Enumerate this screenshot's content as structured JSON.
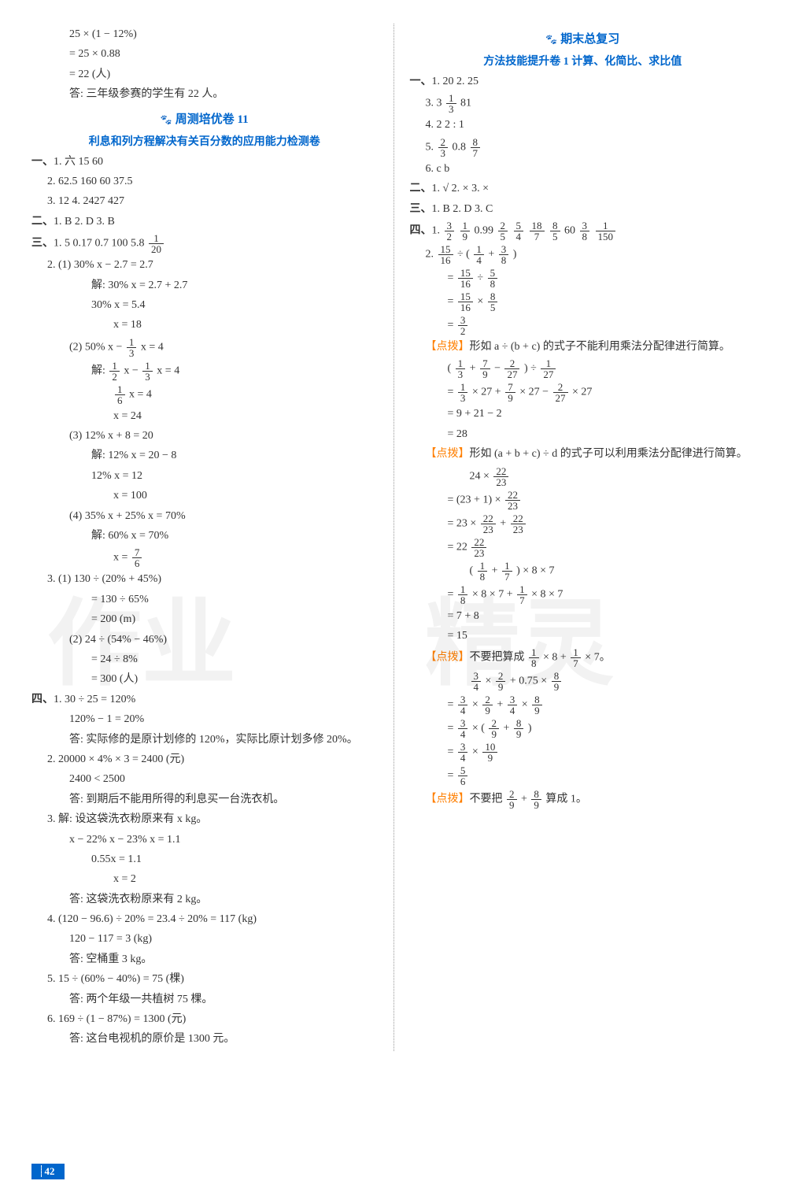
{
  "watermarks": {
    "left": "作业",
    "right": "精灵"
  },
  "pageNumber": "42",
  "left": {
    "intro": [
      "25 × (1 − 12%)",
      "= 25 × 0.88",
      "= 22 (人)",
      "答: 三年级参赛的学生有 22 人。"
    ],
    "heading11": "周测培优卷 11",
    "subheading11": "利息和列方程解决有关百分数的应用能力检测卷",
    "sec1_label": "一、",
    "sec1": [
      "1. 六  15  60",
      "2. 62.5  160  60  37.5",
      "3. 12  4. 2427  427"
    ],
    "sec2_label": "二、",
    "sec2": "1. B  2. D  3. B",
    "sec3_label": "三、",
    "sec3_q1": "1. 5  0.17  0.7  100  5.8  ",
    "sec3_q1_frac_n": "1",
    "sec3_q1_frac_d": "20",
    "sec3_q2_header": "2. (1) 30% x − 2.7 = 2.7",
    "sec3_q2_1a": "解: 30% x = 2.7 + 2.7",
    "sec3_q2_1b": "30% x = 5.4",
    "sec3_q2_1c": "x = 18",
    "sec3_q2_2h": "(2) 50% x − ",
    "sec3_q2_2h_f1n": "1",
    "sec3_q2_2h_f1d": "3",
    "sec3_q2_2h_tail": " x = 4",
    "sec3_q2_2a_pre": "解: ",
    "sec3_q2_2a_f1n": "1",
    "sec3_q2_2a_f1d": "2",
    "sec3_q2_2a_mid": " x − ",
    "sec3_q2_2a_f2n": "1",
    "sec3_q2_2a_f2d": "3",
    "sec3_q2_2a_tail": " x = 4",
    "sec3_q2_2b_fn": "1",
    "sec3_q2_2b_fd": "6",
    "sec3_q2_2b_tail": " x = 4",
    "sec3_q2_2c": "x = 24",
    "sec3_q2_3h": "(3) 12% x + 8 = 20",
    "sec3_q2_3a": "解: 12% x = 20 − 8",
    "sec3_q2_3b": "12% x = 12",
    "sec3_q2_3c": "x = 100",
    "sec3_q2_4h": "(4) 35% x + 25% x = 70%",
    "sec3_q2_4a": "解: 60% x = 70%",
    "sec3_q2_4b_pre": "x = ",
    "sec3_q2_4b_fn": "7",
    "sec3_q2_4b_fd": "6",
    "sec3_q3_1h": "3. (1) 130 ÷ (20% + 45%)",
    "sec3_q3_1a": "= 130 ÷ 65%",
    "sec3_q3_1b": "= 200 (m)",
    "sec3_q3_2h": "(2) 24 ÷ (54% − 46%)",
    "sec3_q3_2a": "= 24 ÷ 8%",
    "sec3_q3_2b": "= 300 (人)",
    "sec4_label": "四、",
    "sec4_1a": "1. 30 ÷ 25 = 120%",
    "sec4_1b": "120% − 1 = 20%",
    "sec4_1c": "答: 实际修的是原计划修的 120%，实际比原计划多修 20%。",
    "sec4_2a": "2. 20000 × 4% × 3 = 2400 (元)",
    "sec4_2b": "2400 < 2500",
    "sec4_2c": "答: 到期后不能用所得的利息买一台洗衣机。",
    "sec4_3a": "3. 解: 设这袋洗衣粉原来有 x kg。",
    "sec4_3b": "x − 22% x − 23% x = 1.1",
    "sec4_3c": "0.55x = 1.1",
    "sec4_3d": "x = 2",
    "sec4_3e": "答: 这袋洗衣粉原来有 2 kg。",
    "sec4_4a": "4. (120 − 96.6) ÷ 20% = 23.4 ÷ 20% = 117 (kg)",
    "sec4_4b": "120 − 117 = 3 (kg)",
    "sec4_4c": "答: 空桶重 3 kg。",
    "sec4_5a": "5. 15 ÷ (60% − 40%) = 75 (棵)",
    "sec4_5b": "答: 两个年级一共植树 75 棵。",
    "sec4_6a": "6. 169 ÷ (1 − 87%) = 1300 (元)",
    "sec4_6b": "答: 这台电视机的原价是 1300 元。"
  },
  "right": {
    "heading_final": "期末总复习",
    "subheading_method": "方法技能提升卷 1  计算、化简比、求比值",
    "r1_label": "一、",
    "r1_1": "1. 20  2. 25",
    "r1_3_pre": "3. 3 ",
    "r1_3_fn": "1",
    "r1_3_fd": "3",
    "r1_3_tail": "  81",
    "r1_4": "4. 2  2 : 1",
    "r1_5_pre": "5. ",
    "r1_5_f1n": "2",
    "r1_5_f1d": "3",
    "r1_5_mid": "  0.8  ",
    "r1_5_f2n": "8",
    "r1_5_f2d": "7",
    "r1_6": "6. c  b",
    "r2_label": "二、",
    "r2": "1. √  2. ×  3. ×",
    "r3_label": "三、",
    "r3": "1. B  2. D  3. C",
    "r4_label": "四、",
    "r4_q1_pre": "1. ",
    "r4_q1_f1n": "3",
    "r4_q1_f1d": "2",
    "r4_q1_s1": "  ",
    "r4_q1_f2n": "1",
    "r4_q1_f2d": "9",
    "r4_q1_s2": "  0.99  ",
    "r4_q1_f3n": "2",
    "r4_q1_f3d": "5",
    "r4_q1_s3": "  ",
    "r4_q1_f4n": "5",
    "r4_q1_f4d": "4",
    "r4_q1_s4": "  ",
    "r4_q1_f5n": "18",
    "r4_q1_f5d": "7",
    "r4_q1_s5": "  ",
    "r4_q1_f6n": "8",
    "r4_q1_f6d": "5",
    "r4_q1_s6": "  60  ",
    "r4_q1_f7n": "3",
    "r4_q1_f7d": "8",
    "r4_q1_s7": "  ",
    "r4_q1_f8n": "1",
    "r4_q1_f8d": "150",
    "r4_q2_pre": "2. ",
    "r4_q2_f1n": "15",
    "r4_q2_f1d": "16",
    "r4_q2_m1": " ÷ ( ",
    "r4_q2_f2n": "1",
    "r4_q2_f2d": "4",
    "r4_q2_m2": " + ",
    "r4_q2_f3n": "3",
    "r4_q2_f3d": "8",
    "r4_q2_m3": " )",
    "r4_q2_line2_pre": "= ",
    "r4_q2_line2_f1n": "15",
    "r4_q2_line2_f1d": "16",
    "r4_q2_line2_m": " ÷ ",
    "r4_q2_line2_f2n": "5",
    "r4_q2_line2_f2d": "8",
    "r4_q2_line3_pre": "= ",
    "r4_q2_line3_f1n": "15",
    "r4_q2_line3_f1d": "16",
    "r4_q2_line3_m": " × ",
    "r4_q2_line3_f2n": "8",
    "r4_q2_line3_f2d": "5",
    "r4_q2_line4_pre": "= ",
    "r4_q2_line4_fn": "3",
    "r4_q2_line4_fd": "2",
    "hint1_label": "【点拨】",
    "hint1_text": "形如 a ÷ (b + c) 的式子不能利用乘法分配律进行简算。",
    "r4_q3_pre": "( ",
    "r4_q3_f1n": "1",
    "r4_q3_f1d": "3",
    "r4_q3_m1": " + ",
    "r4_q3_f2n": "7",
    "r4_q3_f2d": "9",
    "r4_q3_m2": " − ",
    "r4_q3_f3n": "2",
    "r4_q3_f3d": "27",
    "r4_q3_m3": " ) ÷ ",
    "r4_q3_f4n": "1",
    "r4_q3_f4d": "27",
    "r4_q3_l2_pre": "= ",
    "r4_q3_l2_f1n": "1",
    "r4_q3_l2_f1d": "3",
    "r4_q3_l2_m1": " × 27 + ",
    "r4_q3_l2_f2n": "7",
    "r4_q3_l2_f2d": "9",
    "r4_q3_l2_m2": " × 27 − ",
    "r4_q3_l2_f3n": "2",
    "r4_q3_l2_f3d": "27",
    "r4_q3_l2_m3": " × 27",
    "r4_q3_l3": "= 9 + 21 − 2",
    "r4_q3_l4": "= 28",
    "hint2_label": "【点拨】",
    "hint2_text": "形如 (a + b + c) ÷ d 的式子可以利用乘法分配律进行简算。",
    "r4_q4_l1_pre": "24 × ",
    "r4_q4_l1_fn": "22",
    "r4_q4_l1_fd": "23",
    "r4_q4_l2_pre": "= (23 + 1) × ",
    "r4_q4_l2_fn": "22",
    "r4_q4_l2_fd": "23",
    "r4_q4_l3_pre": "= 23 × ",
    "r4_q4_l3_f1n": "22",
    "r4_q4_l3_f1d": "23",
    "r4_q4_l3_m": " + ",
    "r4_q4_l3_f2n": "22",
    "r4_q4_l3_f2d": "23",
    "r4_q4_l4_pre": "= 22 ",
    "r4_q4_l4_fn": "22",
    "r4_q4_l4_fd": "23",
    "r4_q5_l1_pre": "( ",
    "r4_q5_l1_f1n": "1",
    "r4_q5_l1_f1d": "8",
    "r4_q5_l1_m1": " + ",
    "r4_q5_l1_f2n": "1",
    "r4_q5_l1_f2d": "7",
    "r4_q5_l1_m2": " ) × 8 × 7",
    "r4_q5_l2_pre": "= ",
    "r4_q5_l2_f1n": "1",
    "r4_q5_l2_f1d": "8",
    "r4_q5_l2_m1": " × 8 × 7 + ",
    "r4_q5_l2_f2n": "1",
    "r4_q5_l2_f2d": "7",
    "r4_q5_l2_m2": " × 8 × 7",
    "r4_q5_l3": "= 7 + 8",
    "r4_q5_l4": "= 15",
    "hint3_label": "【点拨】",
    "hint3_text_pre": "不要把算成 ",
    "hint3_f1n": "1",
    "hint3_f1d": "8",
    "hint3_m1": " × 8 + ",
    "hint3_f2n": "1",
    "hint3_f2d": "7",
    "hint3_m2": " × 7。",
    "r4_q6_l1_f1n": "3",
    "r4_q6_l1_f1d": "4",
    "r4_q6_l1_m1": " × ",
    "r4_q6_l1_f2n": "2",
    "r4_q6_l1_f2d": "9",
    "r4_q6_l1_m2": " + 0.75 × ",
    "r4_q6_l1_f3n": "8",
    "r4_q6_l1_f3d": "9",
    "r4_q6_l2_pre": "= ",
    "r4_q6_l2_f1n": "3",
    "r4_q6_l2_f1d": "4",
    "r4_q6_l2_m1": " × ",
    "r4_q6_l2_f2n": "2",
    "r4_q6_l2_f2d": "9",
    "r4_q6_l2_m2": " + ",
    "r4_q6_l2_f3n": "3",
    "r4_q6_l2_f3d": "4",
    "r4_q6_l2_m3": " × ",
    "r4_q6_l2_f4n": "8",
    "r4_q6_l2_f4d": "9",
    "r4_q6_l3_pre": "= ",
    "r4_q6_l3_f1n": "3",
    "r4_q6_l3_f1d": "4",
    "r4_q6_l3_m1": " × ( ",
    "r4_q6_l3_f2n": "2",
    "r4_q6_l3_f2d": "9",
    "r4_q6_l3_m2": " + ",
    "r4_q6_l3_f3n": "8",
    "r4_q6_l3_f3d": "9",
    "r4_q6_l3_m3": " )",
    "r4_q6_l4_pre": "= ",
    "r4_q6_l4_f1n": "3",
    "r4_q6_l4_f1d": "4",
    "r4_q6_l4_m": " × ",
    "r4_q6_l4_f2n": "10",
    "r4_q6_l4_f2d": "9",
    "r4_q6_l5_pre": "= ",
    "r4_q6_l5_fn": "5",
    "r4_q6_l5_fd": "6",
    "hint4_label": "【点拨】",
    "hint4_text_pre": "不要把 ",
    "hint4_f1n": "2",
    "hint4_f1d": "9",
    "hint4_m1": " + ",
    "hint4_f2n": "8",
    "hint4_f2d": "9",
    "hint4_m2": " 算成 1。"
  }
}
